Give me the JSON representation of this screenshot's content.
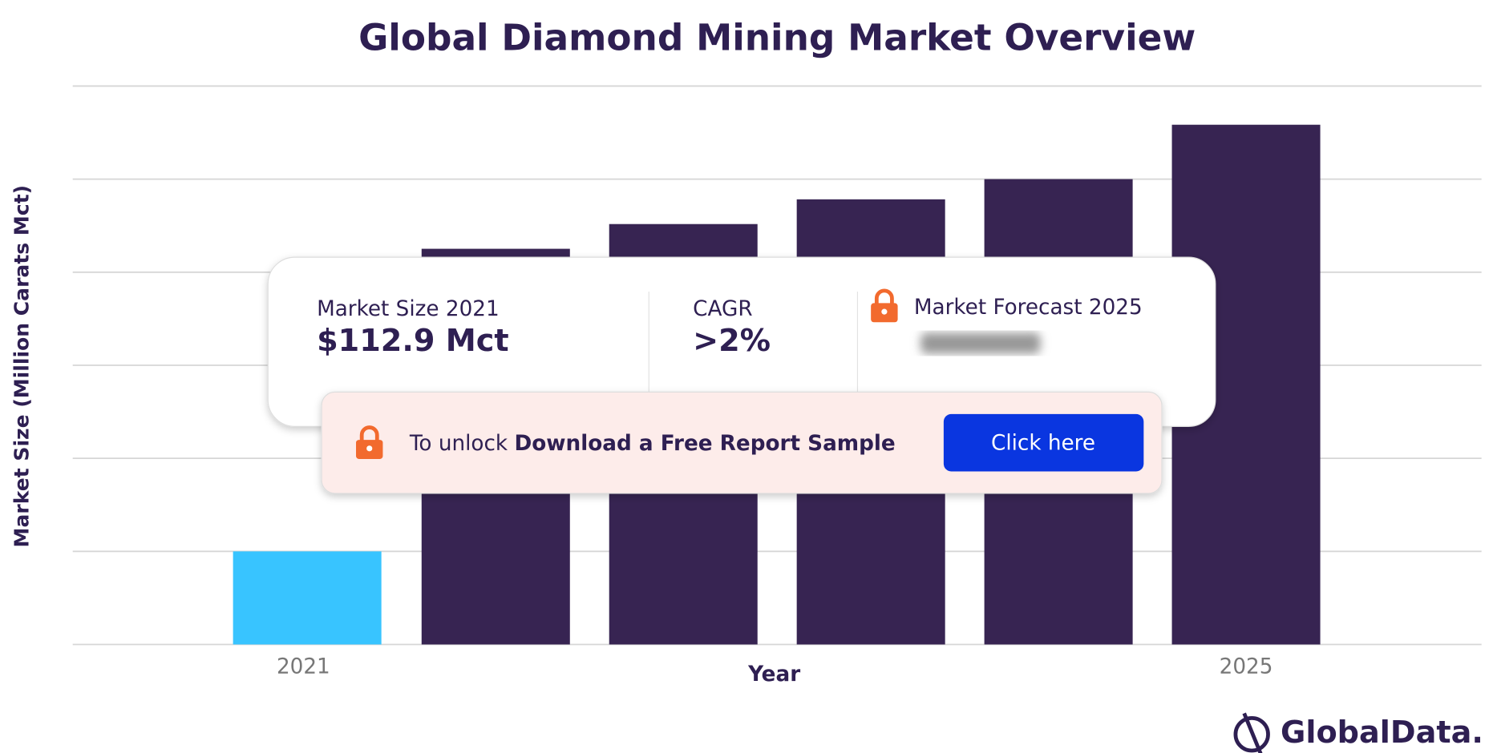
{
  "chart_data": {
    "type": "bar",
    "title": "Global Diamond Mining Market Overview",
    "x_label": "Year",
    "y_label": "Market Size (Million Carats Mct)",
    "categories": [
      "2021",
      null,
      null,
      null,
      null,
      "2025"
    ],
    "values": [
      112.9,
      480,
      510,
      540,
      564.5,
      630.5
    ],
    "colors": [
      "#38c4ff",
      "#372452",
      "#372452",
      "#372452",
      "#372452",
      "#372452"
    ],
    "ylim": [
      0,
      677.4
    ],
    "yticks": [
      0,
      112.9,
      225.8,
      338.7,
      451.6,
      564.5,
      677.4
    ],
    "grid": true
  },
  "overlay": {
    "market_size_label": "Market Size 2021",
    "market_size_value": "$112.9 Mct",
    "cagr_label": "CAGR",
    "cagr_value": ">2%",
    "forecast_label": "Market Forecast 2025",
    "unlock_prefix": "To unlock",
    "unlock_cta": "Download a Free Report Sample",
    "button": "Click here"
  },
  "logo": "GlobalData."
}
